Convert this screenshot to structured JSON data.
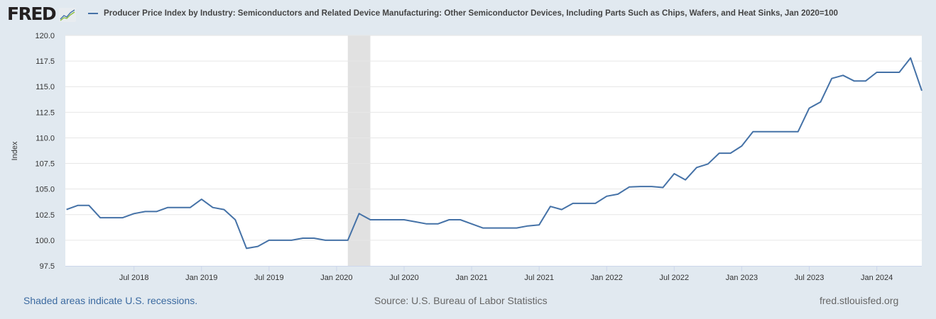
{
  "header": {
    "logo_text": "FRED",
    "logo_icon": "chart-line-icon",
    "series_title": "Producer Price Index by Industry: Semiconductors and Related Device Manufacturing: Other Semiconductor Devices, Including Parts Such as Chips, Wafers, and Heat Sinks, Jan 2020=100"
  },
  "footer": {
    "recession_note": "Shaded areas indicate U.S. recessions.",
    "source": "Source: U.S. Bureau of Labor Statistics",
    "site": "fred.stlouisfed.org"
  },
  "colors": {
    "series": "#4572a7",
    "recession": "#e1e1e1",
    "background": "#e1e9f0",
    "plot_background": "#ffffff",
    "gridline": "#e6e6e6"
  },
  "chart_data": {
    "type": "line",
    "title": "Producer Price Index by Industry: Semiconductors and Related Device Manufacturing: Other Semiconductor Devices, Including Parts Such as Chips, Wafers, and Heat Sinks, Jan 2020=100",
    "xlabel": "",
    "ylabel": "Index",
    "ylim": [
      97.5,
      120.0
    ],
    "xlim": [
      "2018-01",
      "2024-05"
    ],
    "grid": true,
    "legend_position": "top-left",
    "y_ticks": [
      "97.5",
      "100.0",
      "102.5",
      "105.0",
      "107.5",
      "110.0",
      "112.5",
      "115.0",
      "117.5",
      "120.0"
    ],
    "x_ticks": [
      {
        "date": "2018-07",
        "label": "Jul 2018"
      },
      {
        "date": "2019-01",
        "label": "Jan 2019"
      },
      {
        "date": "2019-07",
        "label": "Jul 2019"
      },
      {
        "date": "2020-01",
        "label": "Jan 2020"
      },
      {
        "date": "2020-07",
        "label": "Jul 2020"
      },
      {
        "date": "2021-01",
        "label": "Jan 2021"
      },
      {
        "date": "2021-07",
        "label": "Jul 2021"
      },
      {
        "date": "2022-01",
        "label": "Jan 2022"
      },
      {
        "date": "2022-07",
        "label": "Jul 2022"
      },
      {
        "date": "2023-01",
        "label": "Jan 2023"
      },
      {
        "date": "2023-07",
        "label": "Jul 2023"
      },
      {
        "date": "2024-01",
        "label": "Jan 2024"
      }
    ],
    "recessions": [
      {
        "start": "2020-02",
        "end": "2020-04"
      }
    ],
    "series": [
      {
        "name": "Producer Price Index by Industry: Semiconductors and Related Device Manufacturing: Other Semiconductor Devices, Including Parts Such as Chips, Wafers, and Heat Sinks",
        "start": "2018-01",
        "frequency": "monthly",
        "values": [
          103.0,
          103.4,
          103.4,
          102.2,
          102.2,
          102.2,
          102.6,
          102.8,
          102.8,
          103.2,
          103.2,
          103.2,
          104.0,
          103.2,
          103.0,
          102.0,
          99.2,
          99.4,
          100.0,
          100.0,
          100.0,
          100.2,
          100.2,
          100.0,
          100.0,
          100.0,
          102.6,
          102.0,
          102.0,
          102.0,
          102.0,
          101.8,
          101.6,
          101.6,
          102.0,
          102.0,
          101.6,
          101.2,
          101.2,
          101.2,
          101.2,
          101.4,
          101.5,
          103.3,
          103.0,
          103.6,
          103.6,
          103.6,
          104.3,
          104.5,
          105.2,
          105.25,
          105.25,
          105.15,
          106.5,
          105.9,
          107.1,
          107.45,
          108.5,
          108.5,
          109.2,
          110.6,
          110.6,
          110.6,
          110.6,
          110.6,
          112.9,
          113.5,
          115.8,
          116.1,
          115.55,
          115.55,
          116.4,
          116.4,
          116.4,
          117.8,
          114.6
        ]
      }
    ]
  }
}
